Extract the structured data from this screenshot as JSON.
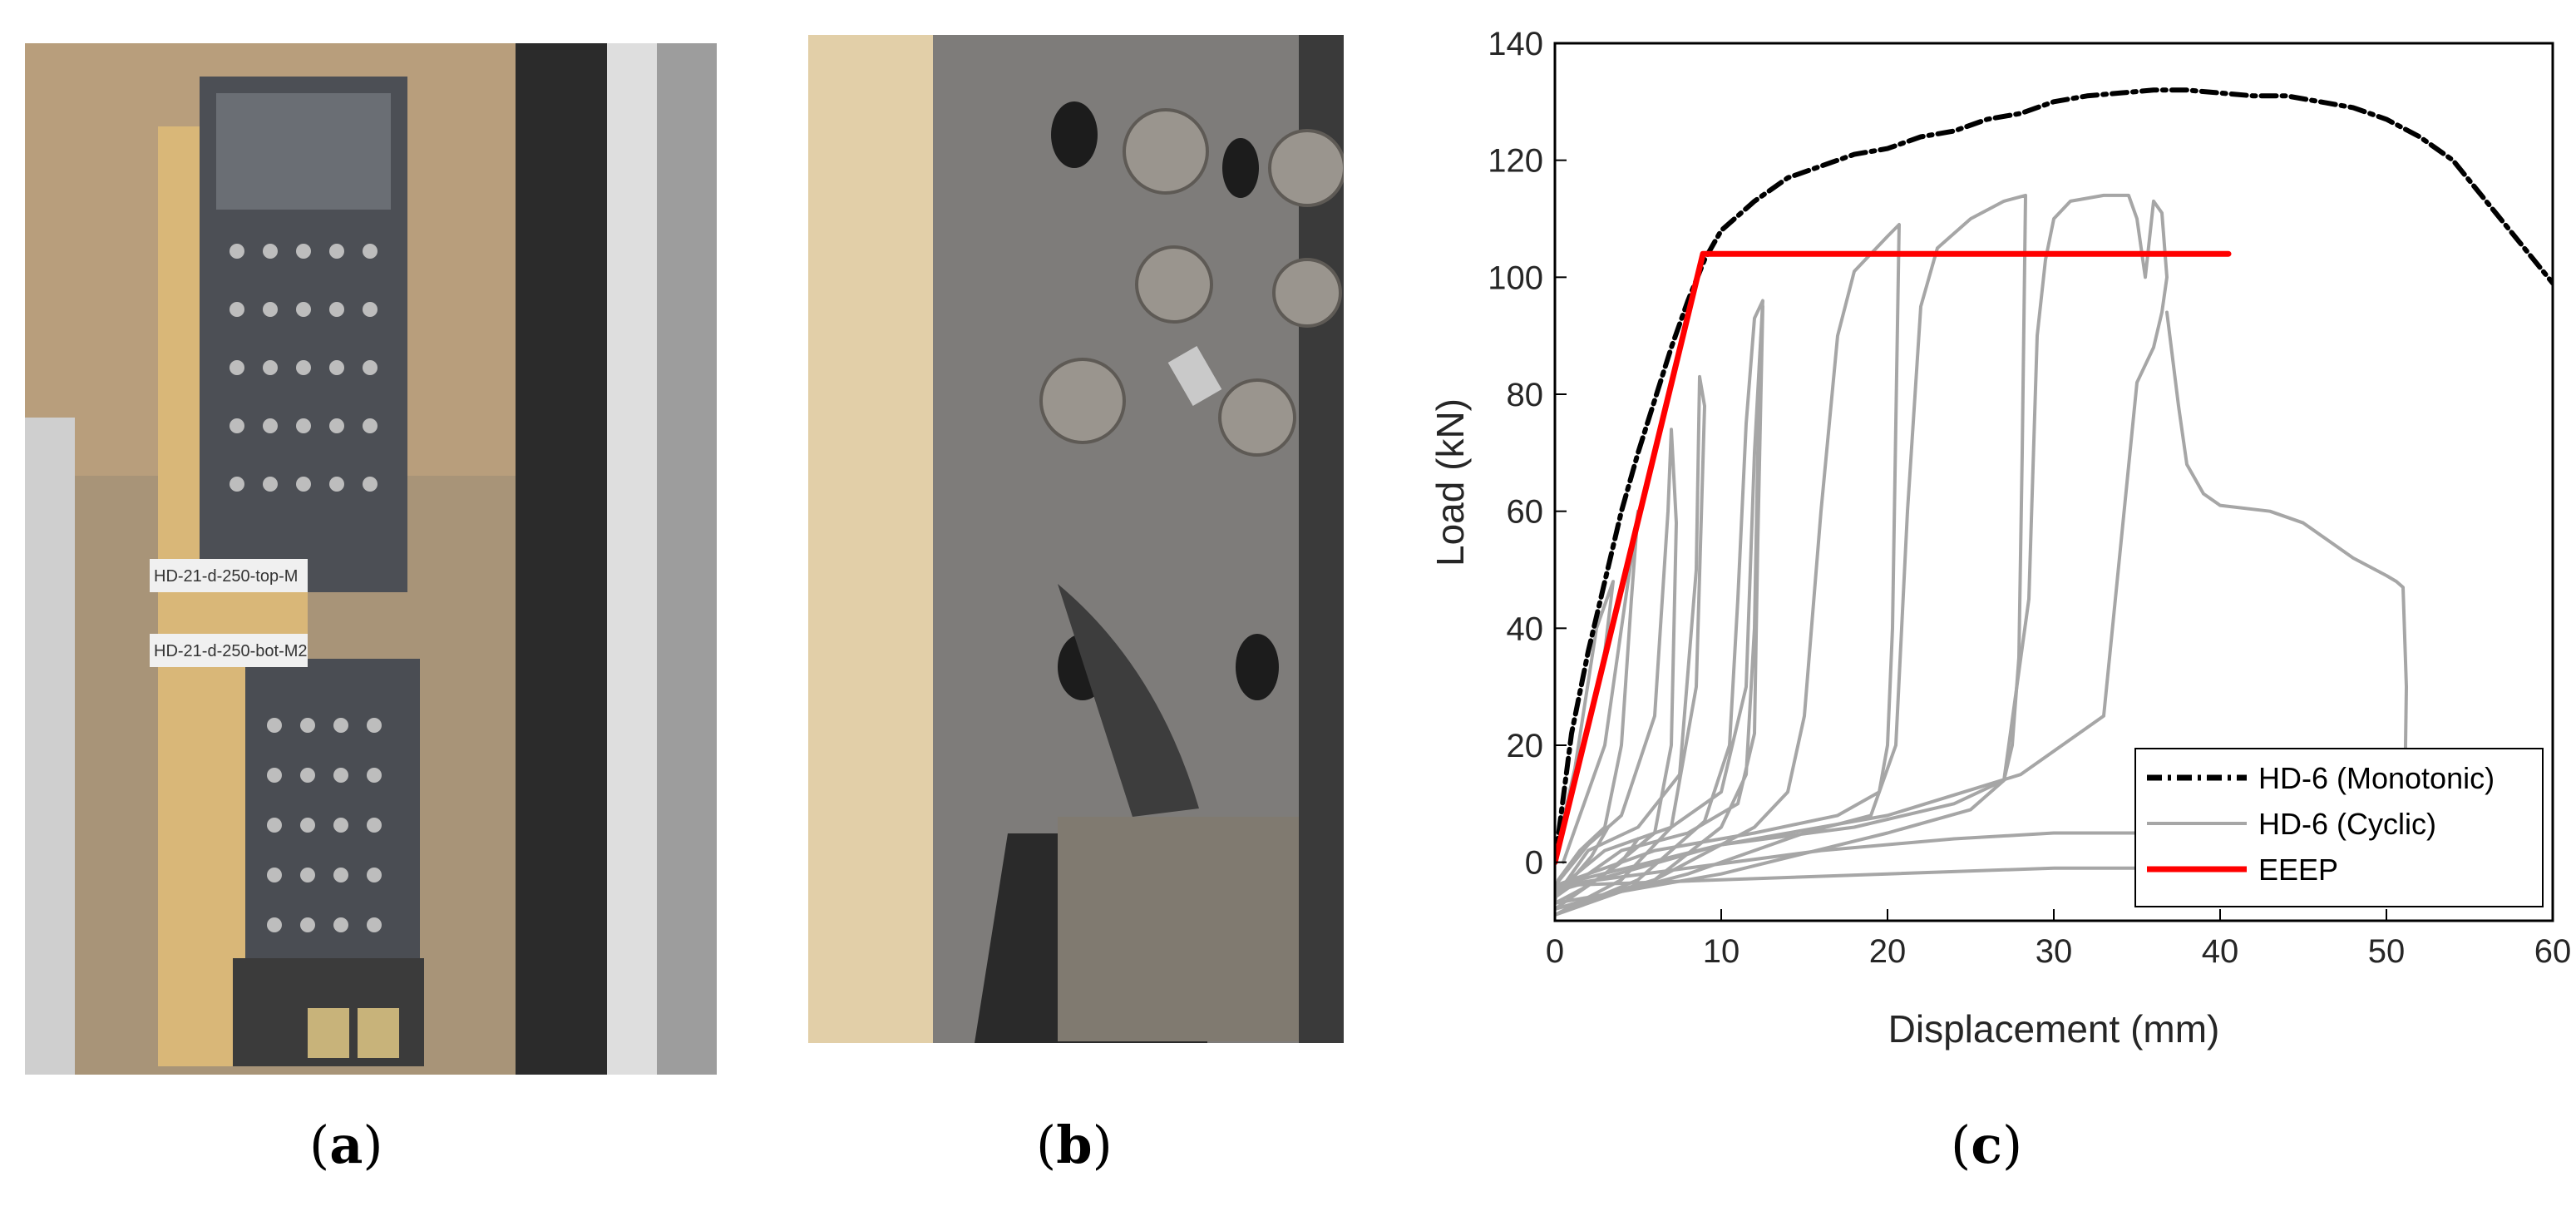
{
  "captions": {
    "a": "a",
    "b": "b",
    "c": "c"
  },
  "photos": {
    "a": {
      "label_top": "HD-21-d-250-top-M",
      "label_bottom": "HD-21-d-250-bot-M2"
    }
  },
  "chart_data": {
    "type": "line",
    "title": "",
    "xlabel": "Displacement (mm)",
    "ylabel": "Load (kN)",
    "xlim": [
      0,
      60
    ],
    "ylim": [
      -10,
      140
    ],
    "xticks": [
      0,
      10,
      20,
      30,
      40,
      50,
      60
    ],
    "yticks": [
      0,
      20,
      40,
      60,
      80,
      100,
      120,
      140
    ],
    "grid": false,
    "legend_position": "bottom-right",
    "series": [
      {
        "name": "HD-6 (Monotonic)",
        "style": "dash-dot",
        "color": "#000000",
        "x": [
          0,
          1,
          2,
          3,
          4,
          5,
          6,
          7,
          8,
          9,
          10,
          12,
          14,
          16,
          18,
          20,
          22,
          24,
          26,
          28,
          30,
          32,
          34,
          36,
          38,
          40,
          42,
          44,
          46,
          48,
          50,
          52,
          54,
          56,
          58,
          60
        ],
        "y": [
          0,
          22,
          36,
          48,
          60,
          70,
          79,
          88,
          96,
          103,
          108,
          113,
          117,
          119,
          121,
          122,
          124,
          125,
          127,
          128,
          130,
          131,
          131.5,
          132,
          132,
          131.5,
          131,
          131,
          130,
          129,
          127,
          124,
          120,
          113,
          106,
          99
        ]
      },
      {
        "name": "HD-6 (Cyclic)",
        "style": "solid",
        "color": "#a6a6a6",
        "loops": [
          {
            "x": [
              0,
              1.5,
              3,
              3.5,
              2.5,
              1.2,
              0,
              -0.3,
              1,
              2.2,
              3.2
            ],
            "y": [
              0,
              18,
              36,
              48,
              40,
              16,
              1,
              -6,
              -3,
              1,
              6
            ]
          },
          {
            "x": [
              0.5,
              3,
              4.5,
              5,
              4.6,
              4,
              3,
              1.5,
              0.2,
              0,
              2,
              4,
              5
            ],
            "y": [
              0,
              20,
              50,
              60,
              45,
              20,
              6,
              2,
              -3,
              -7,
              -4,
              0,
              4
            ]
          },
          {
            "x": [
              0,
              3,
              6,
              7,
              7.3,
              7,
              6.8,
              6,
              4,
              2,
              0
            ],
            "y": [
              -8,
              -2,
              5,
              20,
              58,
              74,
              60,
              25,
              8,
              3,
              -4
            ]
          },
          {
            "x": [
              0,
              4,
              7,
              8.5,
              9,
              8.7,
              8.5,
              7.5,
              5,
              2,
              0
            ],
            "y": [
              -9,
              -3,
              6,
              30,
              78,
              83,
              50,
              15,
              6,
              2,
              -6
            ]
          },
          {
            "x": [
              0,
              5,
              9,
              10.5,
              11,
              11.5,
              12,
              12.5,
              12,
              11.5,
              10,
              7,
              3,
              0
            ],
            "y": [
              -9,
              -3,
              7,
              20,
              45,
              75,
              93,
              96,
              70,
              30,
              12,
              6,
              2,
              -5
            ]
          },
          {
            "x": [
              0,
              6,
              10,
              11.5,
              12,
              12.3,
              12.5,
              12.2,
              12,
              11,
              8,
              4,
              0
            ],
            "y": [
              -9,
              -3,
              6,
              15,
              40,
              85,
              95,
              55,
              22,
              10,
              5,
              2,
              -6
            ]
          },
          {
            "x": [
              0,
              6,
              12,
              14,
              15,
              16,
              17,
              18,
              20,
              20.7,
              20.5,
              20.3,
              20,
              19.5,
              17,
              12,
              6,
              0
            ],
            "y": [
              -8,
              -3,
              6,
              12,
              25,
              60,
              90,
              101,
              107,
              109,
              75,
              40,
              20,
              12,
              8,
              5,
              2,
              -4
            ]
          },
          {
            "x": [
              0,
              8,
              15,
              19,
              20.5,
              21.2,
              22,
              23,
              25,
              27,
              28.3,
              28.1,
              27.9,
              27.5,
              27,
              24,
              18,
              10,
              0
            ],
            "y": [
              -8,
              -2,
              5,
              8,
              20,
              60,
              95,
              105,
              110,
              113,
              114,
              70,
              35,
              20,
              14,
              10,
              6,
              3,
              -5
            ]
          },
          {
            "x": [
              0,
              10,
              20,
              25,
              27,
              28.5,
              29,
              29.5,
              30,
              31,
              33,
              34.5,
              35,
              35.5,
              36,
              36.5,
              36.8,
              36.5,
              36,
              35,
              33,
              28,
              20,
              10,
              0
            ],
            "y": [
              -7,
              -2,
              5,
              9,
              14,
              45,
              90,
              103,
              110,
              113,
              114,
              114,
              110,
              100,
              113,
              111,
              100,
              94,
              88,
              82,
              25,
              15,
              8,
              3,
              -4
            ]
          },
          {
            "x": [
              0,
              8,
              16,
              24,
              30,
              35
            ],
            "y": [
              -4,
              -1,
              2,
              4,
              5,
              5
            ]
          },
          {
            "x": [
              36.8,
              37.5,
              38,
              39,
              40,
              43,
              45,
              48,
              50,
              50.6,
              51,
              51.2,
              51.1,
              51,
              50.8,
              50,
              47,
              45,
              40,
              35,
              30,
              20,
              10,
              0
            ],
            "y": [
              94,
              78,
              68,
              63,
              61,
              60,
              58,
              52,
              49,
              48,
              47,
              30,
              10,
              5,
              3,
              2,
              1,
              0,
              -1,
              -1,
              -1,
              -2,
              -3,
              -4
            ]
          }
        ]
      },
      {
        "name": "EEEP",
        "style": "solid",
        "color": "#ff0000",
        "x": [
          0,
          8.9,
          40.5
        ],
        "y": [
          0,
          104,
          104
        ]
      }
    ]
  }
}
